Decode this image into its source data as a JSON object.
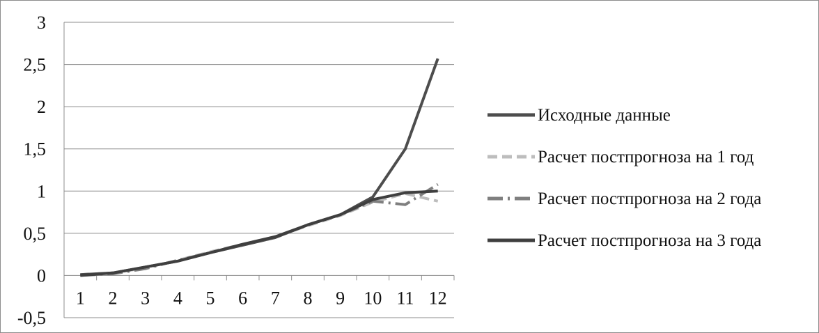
{
  "chart_data": {
    "type": "line",
    "title": "",
    "xlabel": "",
    "ylabel": "",
    "categories": [
      "1",
      "2",
      "3",
      "4",
      "5",
      "6",
      "7",
      "8",
      "9",
      "10",
      "11",
      "12"
    ],
    "ylim": [
      -0.5,
      3
    ],
    "yticks": [
      -0.5,
      0,
      0.5,
      1,
      1.5,
      2,
      2.5,
      3
    ],
    "ytick_labels": [
      "-0,5",
      "0",
      "0,5",
      "1",
      "1,5",
      "2",
      "2,5",
      "3"
    ],
    "grid": "horizontal",
    "legend_position": "right",
    "series": [
      {
        "name": "Исходные данные",
        "color": "#4d4d4d",
        "dash": "solid",
        "values": [
          0.01,
          0.03,
          0.1,
          0.17,
          0.27,
          0.36,
          0.45,
          0.6,
          0.72,
          0.93,
          1.5,
          2.57
        ]
      },
      {
        "name": "Расчет постпрогноза на 1 год",
        "color": "#bdbdbd",
        "dash": "dashed",
        "values": [
          0.01,
          0.03,
          0.09,
          0.18,
          0.28,
          0.37,
          0.46,
          0.59,
          0.71,
          0.87,
          0.97,
          0.88
        ]
      },
      {
        "name": "Расчет постпрогноза на 2 года",
        "color": "#7f7f7f",
        "dash": "dash-dot",
        "values": [
          0.0,
          0.02,
          0.08,
          0.18,
          0.27,
          0.36,
          0.45,
          0.6,
          0.72,
          0.88,
          0.84,
          1.08
        ]
      },
      {
        "name": "Расчет постпрогноза на 3 года",
        "color": "#3f3f3f",
        "dash": "solid",
        "values": [
          0.0,
          0.03,
          0.1,
          0.17,
          0.27,
          0.37,
          0.46,
          0.6,
          0.72,
          0.9,
          0.98,
          1.0
        ]
      }
    ]
  }
}
